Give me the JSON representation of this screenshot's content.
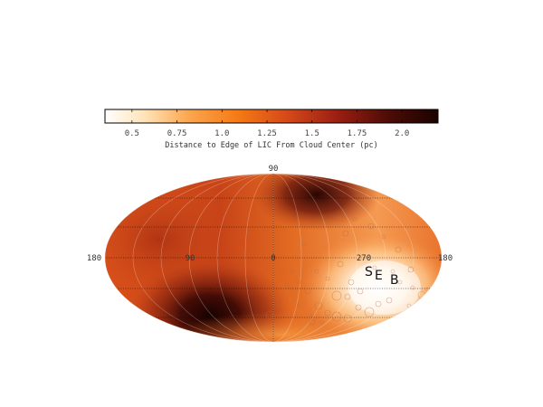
{
  "colorbar": {
    "ticks": [
      "0.5",
      "0.75",
      "1.0",
      "1.25",
      "1.5",
      "1.75",
      "2.0"
    ],
    "tick_values": [
      0.5,
      0.75,
      1.0,
      1.25,
      1.5,
      1.75,
      2.0
    ],
    "range": [
      0.35,
      2.2
    ],
    "label": "Distance to Edge of LIC From Cloud Center (pc)",
    "colors": [
      "#ffffff",
      "#ffd49a",
      "#f98c1c",
      "#d8521a",
      "#8e1a10",
      "#4a0b05",
      "#1a0200"
    ]
  },
  "map": {
    "projection": "Aitoff",
    "top_label": "90",
    "longitude_labels": {
      "left_edge": "180",
      "mid_left": "90",
      "center": "0",
      "mid_right": "270",
      "right_edge": "180"
    },
    "markers": [
      "S",
      "E",
      "B"
    ]
  }
}
